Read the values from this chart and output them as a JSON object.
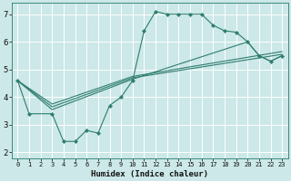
{
  "xlabel": "Humidex (Indice chaleur)",
  "bg_color": "#cce8e8",
  "grid_color": "#ffffff",
  "line_color": "#2e7d6e",
  "xlim": [
    -0.5,
    23.5
  ],
  "ylim": [
    1.8,
    7.4
  ],
  "xticks": [
    0,
    1,
    2,
    3,
    4,
    5,
    6,
    7,
    8,
    9,
    10,
    11,
    12,
    13,
    14,
    15,
    16,
    17,
    18,
    19,
    20,
    21,
    22,
    23
  ],
  "yticks": [
    2,
    3,
    4,
    5,
    6,
    7
  ],
  "series": [
    {
      "x": [
        0,
        1,
        3,
        4,
        5,
        6,
        7,
        8,
        9,
        10,
        11,
        12,
        13,
        14,
        15,
        16,
        17,
        18,
        19,
        20,
        21,
        22,
        23
      ],
      "y": [
        4.6,
        3.4,
        3.4,
        2.4,
        2.4,
        2.8,
        2.7,
        3.7,
        4.0,
        4.6,
        6.4,
        7.1,
        7.0,
        7.0,
        7.0,
        7.0,
        6.6,
        6.4,
        6.35,
        6.0,
        5.5,
        5.3,
        5.5
      ],
      "marker": true
    },
    {
      "x": [
        0,
        3,
        10,
        20,
        21,
        22,
        23
      ],
      "y": [
        4.6,
        3.55,
        4.65,
        6.0,
        5.5,
        5.3,
        5.5
      ],
      "marker": false
    },
    {
      "x": [
        0,
        3,
        10,
        23
      ],
      "y": [
        4.6,
        3.65,
        4.7,
        5.55
      ],
      "marker": false
    },
    {
      "x": [
        0,
        3,
        10,
        23
      ],
      "y": [
        4.6,
        3.75,
        4.75,
        5.65
      ],
      "marker": false
    }
  ]
}
